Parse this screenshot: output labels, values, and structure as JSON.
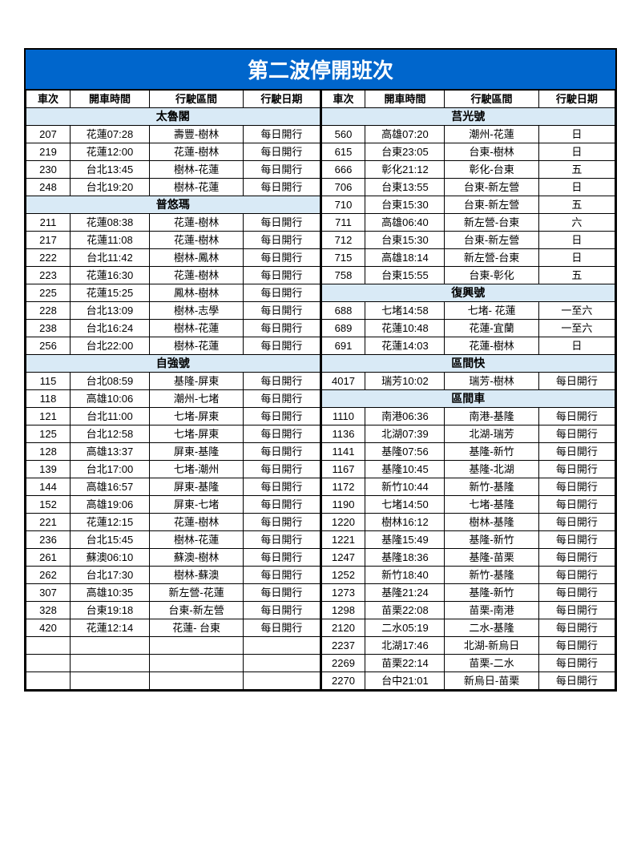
{
  "title": "第二波停開班次",
  "headers": [
    "車次",
    "開車時間",
    "行駛區間",
    "行駛日期"
  ],
  "colors": {
    "title_bg": "#0066cc",
    "group_bg": "#d9eaf6",
    "border": "#000000"
  },
  "left": {
    "groups": [
      {
        "name": "太魯閣",
        "rows": [
          [
            "207",
            "花蓮07:28",
            "壽豐-樹林",
            "每日開行"
          ],
          [
            "219",
            "花蓮12:00",
            "花蓮-樹林",
            "每日開行"
          ],
          [
            "230",
            "台北13:45",
            "樹林-花蓮",
            "每日開行"
          ],
          [
            "248",
            "台北19:20",
            "樹林-花蓮",
            "每日開行"
          ]
        ]
      },
      {
        "name": "普悠瑪",
        "rows": [
          [
            "211",
            "花蓮08:38",
            "花蓮-樹林",
            "每日開行"
          ],
          [
            "217",
            "花蓮11:08",
            "花蓮-樹林",
            "每日開行"
          ],
          [
            "222",
            "台北11:42",
            "樹林-鳳林",
            "每日開行"
          ],
          [
            "223",
            "花蓮16:30",
            "花蓮-樹林",
            "每日開行"
          ],
          [
            "225",
            "花蓮15:25",
            "鳳林-樹林",
            "每日開行"
          ],
          [
            "228",
            "台北13:09",
            "樹林-志學",
            "每日開行"
          ],
          [
            "238",
            "台北16:24",
            "樹林-花蓮",
            "每日開行"
          ],
          [
            "256",
            "台北22:00",
            "樹林-花蓮",
            "每日開行"
          ]
        ]
      },
      {
        "name": "自強號",
        "rows": [
          [
            "115",
            "台北08:59",
            "基隆-屏東",
            "每日開行"
          ],
          [
            "118",
            "高雄10:06",
            "潮州-七堵",
            "每日開行"
          ],
          [
            "121",
            "台北11:00",
            "七堵-屏東",
            "每日開行"
          ],
          [
            "125",
            "台北12:58",
            "七堵-屏東",
            "每日開行"
          ],
          [
            "128",
            "高雄13:37",
            "屏東-基隆",
            "每日開行"
          ],
          [
            "139",
            "台北17:00",
            "七堵-潮州",
            "每日開行"
          ],
          [
            "144",
            "高雄16:57",
            "屏東-基隆",
            "每日開行"
          ],
          [
            "152",
            "高雄19:06",
            "屏東-七堵",
            "每日開行"
          ],
          [
            "221",
            "花蓮12:15",
            "花蓮-樹林",
            "每日開行"
          ],
          [
            "236",
            "台北15:45",
            "樹林-花蓮",
            "每日開行"
          ],
          [
            "261",
            "蘇澳06:10",
            "蘇澳-樹林",
            "每日開行"
          ],
          [
            "262",
            "台北17:30",
            "樹林-蘇澳",
            "每日開行"
          ],
          [
            "307",
            "高雄10:35",
            "新左營-花蓮",
            "每日開行"
          ],
          [
            "328",
            "台東19:18",
            "台東-新左營",
            "每日開行"
          ],
          [
            "420",
            "花蓮12:14",
            "花蓮- 台東",
            "每日開行"
          ]
        ]
      }
    ],
    "trailing_blank_rows": 3
  },
  "right": {
    "groups": [
      {
        "name": "莒光號",
        "rows": [
          [
            "560",
            "高雄07:20",
            "潮州-花蓮",
            "日"
          ],
          [
            "615",
            "台東23:05",
            "台東-樹林",
            "日"
          ],
          [
            "666",
            "彰化21:12",
            "彰化-台東",
            "五"
          ],
          [
            "706",
            "台東13:55",
            "台東-新左營",
            "日"
          ],
          [
            "710",
            "台東15:30",
            "台東-新左營",
            "五"
          ],
          [
            "711",
            "高雄06:40",
            "新左營-台東",
            "六"
          ],
          [
            "712",
            "台東15:30",
            "台東-新左營",
            "日"
          ],
          [
            "715",
            "高雄18:14",
            "新左營-台東",
            "日"
          ],
          [
            "758",
            "台東15:55",
            "台東-彰化",
            "五"
          ]
        ]
      },
      {
        "name": "復興號",
        "rows": [
          [
            "688",
            "七堵14:58",
            "七堵- 花蓮",
            "一至六"
          ],
          [
            "689",
            "花蓮10:48",
            "花蓮-宜蘭",
            "一至六"
          ],
          [
            "691",
            "花蓮14:03",
            "花蓮-樹林",
            "日"
          ]
        ]
      },
      {
        "name": "區間快",
        "rows": [
          [
            "4017",
            "瑞芳10:02",
            "瑞芳-樹林",
            "每日開行"
          ]
        ]
      },
      {
        "name": "區間車",
        "rows": [
          [
            "1110",
            "南港06:36",
            "南港-基隆",
            "每日開行"
          ],
          [
            "1136",
            "北湖07:39",
            "北湖-瑞芳",
            "每日開行"
          ],
          [
            "1141",
            "基隆07:56",
            "基隆-新竹",
            "每日開行"
          ],
          [
            "1167",
            "基隆10:45",
            "基隆-北湖",
            "每日開行"
          ],
          [
            "1172",
            "新竹10:44",
            "新竹-基隆",
            "每日開行"
          ],
          [
            "1190",
            "七堵14:50",
            "七堵-基隆",
            "每日開行"
          ],
          [
            "1220",
            "樹林16:12",
            "樹林-基隆",
            "每日開行"
          ],
          [
            "1221",
            "基隆15:49",
            "基隆-新竹",
            "每日開行"
          ],
          [
            "1247",
            "基隆18:36",
            "基隆-苗栗",
            "每日開行"
          ],
          [
            "1252",
            "新竹18:40",
            "新竹-基隆",
            "每日開行"
          ],
          [
            "1273",
            "基隆21:24",
            "基隆-新竹",
            "每日開行"
          ],
          [
            "1298",
            "苗栗22:08",
            "苗栗-南港",
            "每日開行"
          ],
          [
            "2120",
            "二水05:19",
            "二水-基隆",
            "每日開行"
          ],
          [
            "2237",
            "北湖17:46",
            "北湖-新烏日",
            "每日開行"
          ],
          [
            "2269",
            "苗栗22:14",
            "苗栗-二水",
            "每日開行"
          ],
          [
            "2270",
            "台中21:01",
            "新烏日-苗栗",
            "每日開行"
          ]
        ]
      }
    ],
    "trailing_blank_rows": 0
  }
}
